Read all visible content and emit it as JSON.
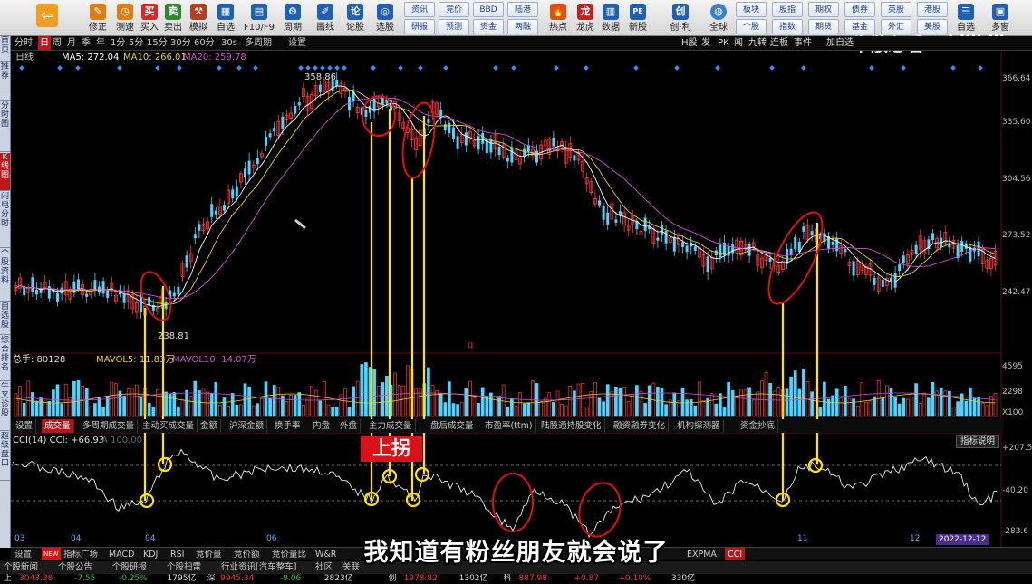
{
  "toolbar": {
    "buttons": [
      {
        "label": "后退",
        "icon": "back-arrow-icon",
        "color": "#f0a020"
      },
      {
        "label": "修正",
        "icon": "edit-icon",
        "color": "#e07d10"
      },
      {
        "label": "测速",
        "icon": "speed-icon",
        "color": "#e07d10"
      },
      {
        "label": "买入",
        "icon": "buy-icon",
        "color": "#d12a2a"
      },
      {
        "label": "卖出",
        "icon": "sell-icon",
        "color": "#2a8a2a"
      },
      {
        "label": "模拟",
        "icon": "simulate-icon",
        "color": "#b04020"
      },
      {
        "label": "自选",
        "icon": "watchlist-icon",
        "color": "#2060b0"
      },
      {
        "label": "F10/F9",
        "icon": "f10-icon",
        "color": "#2060b0"
      },
      {
        "label": "周期",
        "icon": "period-icon",
        "color": "#2060b0"
      },
      {
        "label": "画线",
        "icon": "draw-line-icon",
        "color": "#2060b0"
      },
      {
        "label": "论股",
        "icon": "discuss-icon",
        "color": "#2060b0"
      },
      {
        "label": "选股",
        "icon": "stock-pick-icon",
        "color": "#2060b0"
      }
    ],
    "grid_buttons": [
      [
        "资讯",
        "竞价",
        "BBD",
        "陆港"
      ],
      [
        "研报",
        "预测",
        "资金",
        "两融"
      ]
    ],
    "icon_buttons": [
      {
        "label": "热点",
        "icon": "hot-icon"
      },
      {
        "label": "龙虎",
        "icon": "dragon-tiger-icon"
      },
      {
        "label": "数据",
        "icon": "data-icon"
      },
      {
        "label": "新股",
        "icon": "ipo-icon"
      },
      {
        "label": "创·利",
        "icon": "chuang-icon"
      },
      {
        "label": "全球",
        "icon": "globe-icon"
      }
    ],
    "right_grid": [
      [
        "板块",
        "股指",
        "期权",
        "债券",
        "英股",
        "港股"
      ],
      [
        "个股",
        "指数",
        "期货",
        "基金",
        "外汇",
        "美股"
      ]
    ],
    "far_right": [
      "自选",
      "多窗"
    ]
  },
  "sidebar": [
    "首页",
    "推荐",
    "分时图",
    "K线图",
    "闪电分时",
    "个股资料",
    "自选股",
    "综合排名",
    "牛叉诊股",
    "超级盘口"
  ],
  "period_tabs": [
    "分时",
    "日",
    "周",
    "月",
    "季",
    "年",
    "1分",
    "5分",
    "15分",
    "30分",
    "60分",
    "30s",
    "多周期",
    "设置"
  ],
  "period_active": "日",
  "top_right_tabs": [
    "H股",
    "发",
    "PK",
    "闻",
    "九转",
    "连板",
    "事件"
  ],
  "top_right_extra": "加自选",
  "watermark": "牛散必看",
  "watermark2": "bilibili",
  "main_chart": {
    "title": "日线",
    "ma5_label": "MA5: 272.04",
    "ma10_label": "MA10: 266.01",
    "ma20_label": "MA20: 259.78",
    "high_label": "358.86",
    "low_label": "238.81",
    "marker": "q",
    "y_axis": [
      "366.64",
      "335.60",
      "304.56",
      "273.52",
      "242.47"
    ]
  },
  "volume": {
    "label_total": "总手: 80128",
    "mavol5": "MAVOL5: 11.83万",
    "mavol10": "MAVOL10: 14.07万",
    "y_axis": [
      "4595",
      "2298",
      "X100"
    ]
  },
  "indicator_tabs": [
    "设置",
    "成交量",
    "多周期成交量",
    "主动买成交量",
    "金额",
    "沪深金额",
    "换手率",
    "内盘",
    "外盘",
    "主力成交量",
    "盘后成交量",
    "市盈率(ttm)",
    "陆股通持股变化",
    "融资融券变化",
    "机构探测器",
    "资金抄底"
  ],
  "indicator_active": "成交量",
  "cci": {
    "label": "CCI(14) CCI: +66.93",
    "extra": "A 100.00",
    "y_axis": [
      "+207.5",
      "-40.20",
      "-283.6"
    ],
    "button": "指标说明"
  },
  "x_ticks": [
    "03",
    "04",
    "04",
    "06",
    "11",
    "12"
  ],
  "date_badge": "2022-12-12",
  "up_label": "上拐",
  "subtitle": "我知道有粉丝朋友就会说了",
  "bottom_tabs": [
    "设置",
    "指标广场",
    "MACD",
    "KDJ",
    "RSI",
    "竞价量",
    "竞价额",
    "竞价量比",
    "W&R",
    "EXPMA",
    "CCI"
  ],
  "bottom_new": "NEW",
  "bottom_active": "CCI",
  "news_bar": [
    "个股新闻",
    "个股公告",
    "个股研报",
    "个股扫雷",
    "行业资讯[汽车整车]",
    "社区",
    "关联"
  ],
  "ticker": [
    {
      "text": "上",
      "color": "#ddd"
    },
    {
      "text": "3043.38",
      "color": "#ff3333"
    },
    {
      "text": "-7.55",
      "color": "#22cc22"
    },
    {
      "text": "-0.25%",
      "color": "#22cc22"
    },
    {
      "text": "1795亿",
      "color": "#ddd"
    },
    {
      "text": "深",
      "color": "#ddd"
    },
    {
      "text": "9945.34",
      "color": "#ff3333"
    },
    {
      "text": "-9.06",
      "color": "#22cc22"
    },
    {
      "text": "2823亿",
      "color": "#ddd"
    },
    {
      "text": "创",
      "color": "#ddd"
    },
    {
      "text": "1978.82",
      "color": "#ff3333"
    },
    {
      "text": "1302亿",
      "color": "#ddd"
    },
    {
      "text": "科",
      "color": "#ddd"
    },
    {
      "text": "887.98",
      "color": "#ff3333"
    },
    {
      "text": "+0.87",
      "color": "#ff3333"
    },
    {
      "text": "+0.10%",
      "color": "#ff3333"
    },
    {
      "text": "330亿",
      "color": "#ddd"
    }
  ]
}
